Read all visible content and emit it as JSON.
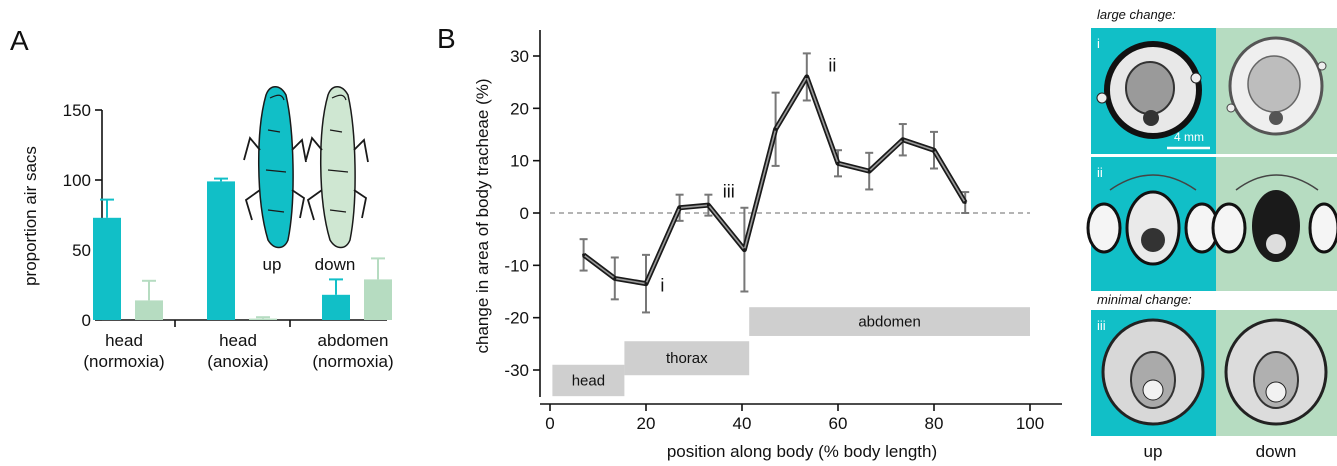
{
  "colors": {
    "up": "#11bfc7",
    "down": "#b6dcc1",
    "line": "#1a1a1a",
    "error": "#777777",
    "region": "#cfcfcf"
  },
  "chart_data": [
    {
      "panel": "A",
      "type": "bar",
      "ylabel": "proportion air sacs",
      "ylim": [
        0,
        150
      ],
      "yticks": [
        0,
        50,
        100,
        150
      ],
      "categories": [
        [
          "head",
          "(normoxia)"
        ],
        [
          "head",
          "(anoxia)"
        ],
        [
          "abdomen",
          "(normoxia)"
        ]
      ],
      "series": [
        {
          "name": "up",
          "values": [
            73,
            99,
            18
          ],
          "errors": [
            13,
            2,
            11
          ]
        },
        {
          "name": "down",
          "values": [
            14,
            1,
            29
          ],
          "errors": [
            14,
            1,
            15
          ]
        }
      ],
      "legend": {
        "up": "up",
        "down": "down",
        "placement": "top-right",
        "icon": "grasshopper-icon"
      }
    },
    {
      "panel": "B",
      "type": "line",
      "xlabel": "position along body (% body length)",
      "ylabel": "change in area of body tracheae (%)",
      "xlim": [
        0,
        100
      ],
      "ylim": [
        -35,
        33
      ],
      "xticks": [
        0,
        20,
        40,
        60,
        80,
        100
      ],
      "yticks": [
        -30,
        -20,
        -10,
        0,
        10,
        20,
        30
      ],
      "x": [
        7,
        13.5,
        20,
        27,
        33,
        40.5,
        47,
        53.5,
        60,
        66.5,
        73.5,
        80,
        86.5
      ],
      "y": [
        -8,
        -12.5,
        -13.5,
        1,
        1.5,
        -7,
        16,
        26,
        9.5,
        8,
        14,
        12,
        2
      ],
      "errors": [
        3,
        4,
        5.5,
        2.5,
        2,
        8,
        7,
        4.5,
        2.5,
        3.5,
        3,
        3.5,
        2
      ],
      "baseline": 0,
      "point_labels": [
        {
          "text": "i",
          "x": 23,
          "y": -15
        },
        {
          "text": "iii",
          "x": 36,
          "y": 3
        },
        {
          "text": "ii",
          "x": 58,
          "y": 27
        }
      ],
      "regions": [
        {
          "label": "head",
          "x": [
            0.5,
            15.5
          ],
          "y": [
            -35,
            -29
          ]
        },
        {
          "label": "thorax",
          "x": [
            15.5,
            41.5
          ],
          "y": [
            -31,
            -24.5
          ]
        },
        {
          "label": "abdomen",
          "x": [
            41.5,
            100
          ],
          "y": [
            -23.5,
            -18
          ]
        }
      ]
    }
  ],
  "panel_labels": {
    "a": "A",
    "b": "B"
  },
  "images": {
    "header_large": "large change:",
    "header_minimal": "minimal change:",
    "scale_bar": "4 mm",
    "labels": [
      "i",
      "ii",
      "iii"
    ],
    "col_up": "up",
    "col_down": "down"
  }
}
